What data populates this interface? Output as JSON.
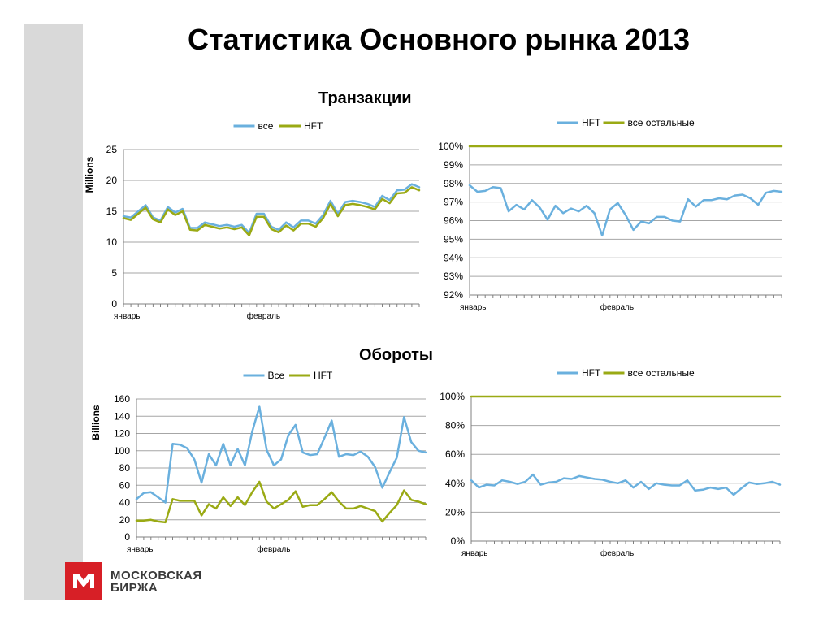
{
  "page": {
    "title": "Статистика Основного рынка 2013",
    "section_transactions": "Транзакции",
    "section_turnover": "Обороты",
    "logo_line1": "МОСКОВСКАЯ",
    "logo_line2": "БИРЖА"
  },
  "colors": {
    "blue": "#6ab0de",
    "olive": "#9aaa14",
    "grid": "#a6a6a6",
    "sidebar": "#d9d9d9",
    "brand_red": "#d71f26"
  },
  "chart_data": [
    {
      "id": "c1",
      "type": "line",
      "ylabel": "Millions",
      "ylim": [
        0,
        25
      ],
      "yticks": [
        0,
        5,
        10,
        15,
        20,
        25
      ],
      "ytick_labels": [
        "0",
        "5",
        "10",
        "15",
        "20",
        "25"
      ],
      "xtick_labels": [
        {
          "label": "январь",
          "index": 0
        },
        {
          "label": "февраль",
          "index": 18
        }
      ],
      "legend_placement": "top-center",
      "series": [
        {
          "name": "все",
          "color": "#6ab0de",
          "values": [
            14.2,
            14.0,
            15.0,
            16.0,
            14.0,
            13.5,
            15.7,
            14.8,
            15.4,
            12.3,
            12.3,
            13.2,
            12.9,
            12.6,
            12.8,
            12.5,
            12.8,
            11.5,
            14.6,
            14.6,
            12.5,
            12.0,
            13.2,
            12.4,
            13.5,
            13.5,
            13.0,
            14.4,
            16.7,
            14.6,
            16.5,
            16.7,
            16.5,
            16.2,
            15.7,
            17.5,
            16.8,
            18.4,
            18.5,
            19.4,
            18.9
          ]
        },
        {
          "name": "HFT",
          "color": "#9aaa14",
          "values": [
            13.9,
            13.6,
            14.6,
            15.6,
            13.7,
            13.2,
            15.3,
            14.4,
            15.0,
            12.0,
            11.9,
            12.8,
            12.5,
            12.2,
            12.4,
            12.1,
            12.4,
            11.1,
            14.1,
            14.1,
            12.1,
            11.6,
            12.7,
            11.9,
            13.0,
            13.0,
            12.5,
            13.9,
            16.2,
            14.2,
            16.0,
            16.2,
            16.0,
            15.7,
            15.3,
            17.0,
            16.3,
            17.9,
            18.0,
            18.9,
            18.4
          ]
        }
      ]
    },
    {
      "id": "c2",
      "type": "line",
      "ylim": [
        92,
        100
      ],
      "yticks": [
        92,
        93,
        94,
        95,
        96,
        97,
        98,
        99,
        100
      ],
      "ytick_labels": [
        "92%",
        "93%",
        "94%",
        "95%",
        "96%",
        "97%",
        "98%",
        "99%",
        "100%"
      ],
      "xtick_labels": [
        {
          "label": "январь",
          "index": 0
        },
        {
          "label": "февраль",
          "index": 18
        }
      ],
      "legend_placement": "top-center",
      "series": [
        {
          "name": "HFT",
          "color": "#6ab0de",
          "values": [
            97.9,
            97.55,
            97.6,
            97.8,
            97.75,
            96.5,
            96.85,
            96.6,
            97.1,
            96.7,
            96.05,
            96.8,
            96.4,
            96.65,
            96.5,
            96.8,
            96.4,
            95.2,
            96.6,
            96.95,
            96.3,
            95.5,
            95.95,
            95.85,
            96.2,
            96.2,
            96.0,
            95.95,
            97.15,
            96.75,
            97.1,
            97.1,
            97.2,
            97.15,
            97.35,
            97.4,
            97.2,
            96.85,
            97.5,
            97.6,
            97.55
          ]
        },
        {
          "name": "все остальные",
          "color": "#9aaa14",
          "values": [
            100,
            100,
            100,
            100,
            100,
            100,
            100,
            100,
            100,
            100,
            100,
            100,
            100,
            100,
            100,
            100,
            100,
            100,
            100,
            100,
            100,
            100,
            100,
            100,
            100,
            100,
            100,
            100,
            100,
            100,
            100,
            100,
            100,
            100,
            100,
            100,
            100,
            100,
            100,
            100,
            100
          ]
        }
      ]
    },
    {
      "id": "c3",
      "type": "line",
      "ylabel": "Billions",
      "ylim": [
        0,
        160
      ],
      "yticks": [
        0,
        20,
        40,
        60,
        80,
        100,
        120,
        140,
        160
      ],
      "ytick_labels": [
        "0",
        "20",
        "40",
        "60",
        "80",
        "100",
        "120",
        "140",
        "160"
      ],
      "xtick_labels": [
        {
          "label": "январь",
          "index": 0
        },
        {
          "label": "февраль",
          "index": 18
        }
      ],
      "legend_placement": "top-center",
      "series": [
        {
          "name": "Все",
          "color": "#6ab0de",
          "values": [
            44,
            51,
            52,
            46,
            40,
            108,
            107,
            103,
            90,
            63,
            96,
            83,
            108,
            83,
            102,
            83,
            122,
            151,
            101,
            83,
            90,
            118,
            130,
            98,
            95,
            96,
            115,
            135,
            93,
            96,
            95,
            99,
            93,
            81,
            57,
            75,
            92,
            139,
            110,
            100,
            98
          ]
        },
        {
          "name": "HFT",
          "color": "#9aaa14",
          "values": [
            19,
            19,
            20,
            18,
            17,
            44,
            42,
            42,
            42,
            25,
            38,
            33,
            46,
            36,
            46,
            37,
            52,
            64,
            41,
            33,
            38,
            43,
            53,
            35,
            37,
            37,
            44,
            52,
            41,
            33,
            33,
            36,
            33,
            30,
            18,
            28,
            37,
            54,
            43,
            41,
            38
          ]
        }
      ]
    },
    {
      "id": "c4",
      "type": "line",
      "ylim": [
        0,
        100
      ],
      "yticks": [
        0,
        20,
        40,
        60,
        80,
        100
      ],
      "ytick_labels": [
        "0%",
        "20%",
        "40%",
        "60%",
        "80%",
        "100%"
      ],
      "xtick_labels": [
        {
          "label": "январь",
          "index": 0
        },
        {
          "label": "февраль",
          "index": 18
        }
      ],
      "legend_placement": "top-center",
      "series": [
        {
          "name": "HFT",
          "color": "#6ab0de",
          "values": [
            42,
            37,
            39,
            38.5,
            42,
            41,
            39.5,
            41,
            46,
            39,
            40.5,
            41,
            43.5,
            43,
            45,
            44,
            43,
            42.5,
            41,
            40,
            42,
            37,
            41,
            36,
            40,
            39,
            38.5,
            38.5,
            42,
            35,
            35.5,
            37,
            36,
            37,
            32,
            36.5,
            40.5,
            39.5,
            40,
            41,
            39
          ]
        },
        {
          "name": "все остальные",
          "color": "#9aaa14",
          "values": [
            100,
            100,
            100,
            100,
            100,
            100,
            100,
            100,
            100,
            100,
            100,
            100,
            100,
            100,
            100,
            100,
            100,
            100,
            100,
            100,
            100,
            100,
            100,
            100,
            100,
            100,
            100,
            100,
            100,
            100,
            100,
            100,
            100,
            100,
            100,
            100,
            100,
            100,
            100,
            100,
            100
          ]
        }
      ]
    }
  ]
}
